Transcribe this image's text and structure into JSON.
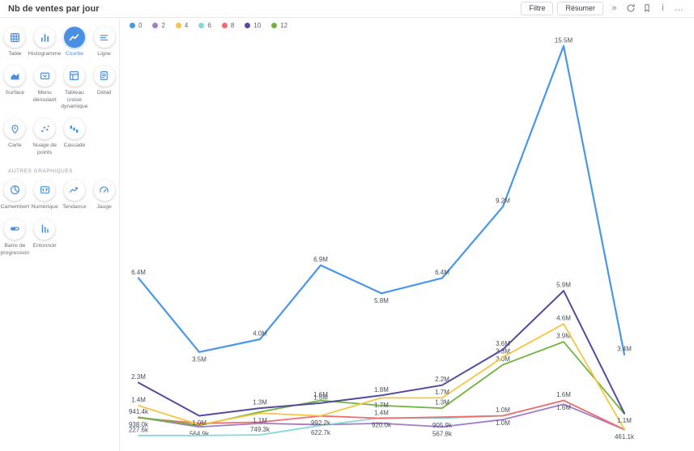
{
  "header": {
    "title": "Nb de ventes par jour",
    "buttons": [
      {
        "key": "filter",
        "label": "Filtre"
      },
      {
        "key": "summary",
        "label": "Résumer"
      }
    ],
    "icons": [
      {
        "name": "collapse-panel-icon"
      },
      {
        "name": "refresh-icon"
      },
      {
        "name": "bookmark-icon"
      },
      {
        "name": "info-icon"
      },
      {
        "name": "more-icon"
      }
    ]
  },
  "sidebar": {
    "main_items": [
      {
        "key": "table",
        "label": "Table",
        "icon": "table-grid-icon",
        "selected": false
      },
      {
        "key": "histogramme",
        "label": "Histogramme",
        "icon": "bar-chart-icon",
        "selected": false
      },
      {
        "key": "courbe",
        "label": "Courbe",
        "icon": "curve-chart-icon",
        "selected": true
      },
      {
        "key": "ligne",
        "label": "Ligne",
        "icon": "line-list-icon",
        "selected": false
      },
      {
        "key": "surface",
        "label": "Surface",
        "icon": "area-chart-icon",
        "selected": false
      },
      {
        "key": "menu-deroulant",
        "label": "Menu déroulant",
        "icon": "dropdown-icon",
        "selected": false
      },
      {
        "key": "tableau-croise-dynamique",
        "label": "Tableau croisé dynamique",
        "icon": "pivot-table-icon",
        "selected": false
      },
      {
        "key": "detail",
        "label": "Détail",
        "icon": "detail-doc-icon",
        "selected": false
      },
      {
        "key": "carte",
        "label": "Carte",
        "icon": "map-pin-icon",
        "selected": false
      },
      {
        "key": "nuage-de-points",
        "label": "Nuage de points",
        "icon": "scatter-plot-icon",
        "selected": false
      },
      {
        "key": "cascade",
        "label": "Cascade",
        "icon": "waterfall-icon",
        "selected": false
      }
    ],
    "other_section_label": "AUTRES GRAPHIQUES",
    "other_items": [
      {
        "key": "camembert",
        "label": "Camembert",
        "icon": "pie-chart-icon",
        "selected": false
      },
      {
        "key": "numerique",
        "label": "Numérique",
        "icon": "numeric-icon",
        "selected": false
      },
      {
        "key": "tendance",
        "label": "Tendance",
        "icon": "trend-icon",
        "selected": false
      },
      {
        "key": "jauge",
        "label": "Jauge",
        "icon": "gauge-icon",
        "selected": false
      },
      {
        "key": "barre-de-progression",
        "label": "Barre de progression",
        "icon": "progress-bar-icon",
        "selected": false
      },
      {
        "key": "entonnoir",
        "label": "Entonnoir",
        "icon": "funnel-icon",
        "selected": false
      }
    ]
  },
  "chart_data": {
    "type": "line",
    "title": "Nb de ventes par jour",
    "x_count": 9,
    "x_tick_labels_visible": false,
    "grid": false,
    "legend_position": "top-left",
    "ylim": [
      0,
      16600000
    ],
    "series": [
      {
        "name": "0",
        "color": "#4a97e8",
        "width": 2.2,
        "values": [
          6400000,
          3500000,
          4000000,
          6900000,
          5800000,
          6400000,
          9200000,
          15500000,
          3400000
        ],
        "labels": [
          "6.4M",
          "3.5M",
          "4.0M",
          "6.9M",
          "5.8M",
          "6.4M",
          "9.2M",
          "15.5M",
          "3.4M"
        ],
        "label_below": [
          1,
          4
        ]
      },
      {
        "name": "2",
        "color": "#a07cc9",
        "width": 1.8,
        "values": [
          938000,
          564900,
          700000,
          650000,
          700000,
          567800,
          850000,
          1450000,
          461100
        ],
        "labels": [
          "938.0k",
          "564.9k",
          "",
          "",
          "",
          "567.8k",
          "",
          "",
          "461.1k"
        ],
        "label_below": [
          0,
          1,
          5,
          8
        ]
      },
      {
        "name": "4",
        "color": "#f6c544",
        "width": 1.8,
        "values": [
          1400000,
          650000,
          1100000,
          1000000,
          1700000,
          1700000,
          3300000,
          4600000,
          470000
        ],
        "labels": [
          "1.4M",
          "",
          "1.1M",
          "",
          "1.7M",
          "1.7M",
          "3.3M",
          "4.6M",
          ""
        ],
        "label_below": [
          2,
          4
        ]
      },
      {
        "name": "6",
        "color": "#86d7dc",
        "width": 1.8,
        "values": [
          227600,
          230000,
          250000,
          622700,
          920000,
          905900,
          1000000,
          1600000,
          465000
        ],
        "labels": [
          "227.6k",
          "",
          "",
          "622.7k",
          "920.0k",
          "905.9k",
          "1.0M",
          "1.6M",
          ""
        ],
        "label_below": [
          3,
          4,
          5,
          6
        ]
      },
      {
        "name": "8",
        "color": "#ee6d6d",
        "width": 1.8,
        "values": [
          920000,
          700000,
          749300,
          992200,
          900000,
          950000,
          1000000,
          1600000,
          461100
        ],
        "labels": [
          "",
          "",
          "749.3k",
          "992.2k",
          "",
          "",
          "1.0M",
          "1.6M",
          ""
        ],
        "label_below": [
          2,
          3,
          7
        ]
      },
      {
        "name": "10",
        "color": "#554b9e",
        "width": 2,
        "values": [
          2300000,
          1000000,
          1300000,
          1500000,
          1800000,
          2200000,
          3600000,
          5900000,
          1100000
        ],
        "labels": [
          "2.3M",
          "1.0M",
          "1.3M",
          "1.5M",
          "1.8M",
          "2.2M",
          "3.6M",
          "5.9M",
          "1.1M"
        ],
        "label_below": [
          1,
          8
        ]
      },
      {
        "name": "12",
        "color": "#6fb53c",
        "width": 1.8,
        "values": [
          941400,
          620000,
          1150000,
          1600000,
          1400000,
          1300000,
          3000000,
          3900000,
          1080000
        ],
        "labels": [
          "941.4k",
          "",
          "",
          "1.6M",
          "1.4M",
          "1.3M",
          "3.0M",
          "3.9M",
          ""
        ],
        "label_below": [
          4
        ]
      }
    ]
  }
}
